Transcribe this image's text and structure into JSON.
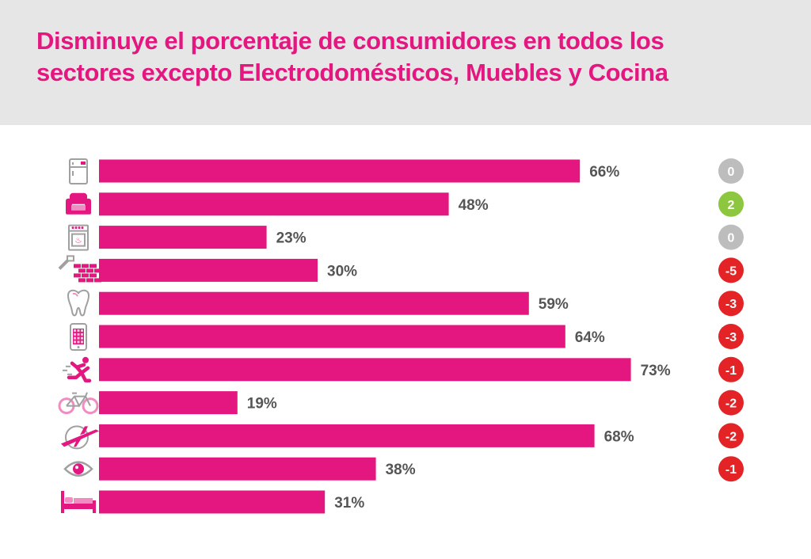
{
  "header": {
    "title_line1": "Disminuye el porcentaje de consumidores en todos los",
    "title_line2": "sectores excepto Electrodomésticos, Muebles y Cocina"
  },
  "colors": {
    "bar": "#e3177f",
    "badge_neutral": "#bdbdbd",
    "badge_positive": "#8dc63f",
    "badge_negative": "#e32326",
    "header_bg": "#e6e6e6"
  },
  "chart_data": {
    "type": "bar",
    "orientation": "horizontal",
    "value_unit": "%",
    "xlim": [
      0,
      80
    ],
    "grid": false,
    "rows": [
      {
        "icon": "refrigerator-icon",
        "value": 66,
        "label": "66%",
        "change": 0,
        "change_label": "0"
      },
      {
        "icon": "armchair-icon",
        "value": 48,
        "label": "48%",
        "change": 2,
        "change_label": "2"
      },
      {
        "icon": "stove-icon",
        "value": 23,
        "label": "23%",
        "change": 0,
        "change_label": "0"
      },
      {
        "icon": "brick-wall-icon",
        "value": 30,
        "label": "30%",
        "change": -5,
        "change_label": "-5"
      },
      {
        "icon": "tooth-icon",
        "value": 59,
        "label": "59%",
        "change": -3,
        "change_label": "-3"
      },
      {
        "icon": "smartphone-icon",
        "value": 64,
        "label": "64%",
        "change": -3,
        "change_label": "-3"
      },
      {
        "icon": "runner-icon",
        "value": 73,
        "label": "73%",
        "change": -1,
        "change_label": "-1"
      },
      {
        "icon": "bicycle-icon",
        "value": 19,
        "label": "19%",
        "change": -2,
        "change_label": "-2"
      },
      {
        "icon": "airplane-icon",
        "value": 68,
        "label": "68%",
        "change": -2,
        "change_label": "-2"
      },
      {
        "icon": "eye-icon",
        "value": 38,
        "label": "38%",
        "change": -1,
        "change_label": "-1"
      },
      {
        "icon": "bed-icon",
        "value": 31,
        "label": "31%",
        "change": null,
        "change_label": ""
      }
    ]
  }
}
